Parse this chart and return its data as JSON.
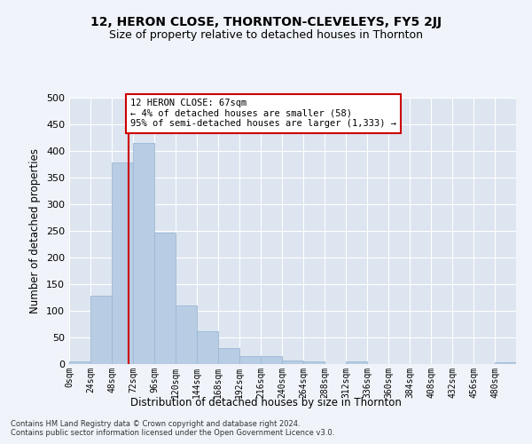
{
  "title": "12, HERON CLOSE, THORNTON-CLEVELEYS, FY5 2JJ",
  "subtitle": "Size of property relative to detached houses in Thornton",
  "xlabel": "Distribution of detached houses by size in Thornton",
  "ylabel": "Number of detached properties",
  "bar_color": "#b8cce4",
  "bar_edge_color": "#9ab8d4",
  "background_color": "#dde5f0",
  "fig_background_color": "#f0f4fa",
  "grid_color": "#ffffff",
  "bin_labels": [
    "0sqm",
    "24sqm",
    "48sqm",
    "72sqm",
    "96sqm",
    "120sqm",
    "144sqm",
    "168sqm",
    "192sqm",
    "216sqm",
    "240sqm",
    "264sqm",
    "288sqm",
    "312sqm",
    "336sqm",
    "360sqm",
    "384sqm",
    "408sqm",
    "432sqm",
    "456sqm",
    "480sqm"
  ],
  "bar_values": [
    5,
    128,
    378,
    415,
    246,
    110,
    62,
    30,
    15,
    15,
    7,
    5,
    0,
    5,
    0,
    0,
    0,
    0,
    0,
    0,
    3
  ],
  "ylim": [
    0,
    500
  ],
  "yticks": [
    0,
    50,
    100,
    150,
    200,
    250,
    300,
    350,
    400,
    450,
    500
  ],
  "property_sqm": 67,
  "annotation_title": "12 HERON CLOSE: 67sqm",
  "annotation_line1": "← 4% of detached houses are smaller (58)",
  "annotation_line2": "95% of semi-detached houses are larger (1,333) →",
  "annotation_box_color": "#ffffff",
  "annotation_box_edge": "#cc0000",
  "red_line_color": "#cc0000",
  "footnote1": "Contains HM Land Registry data © Crown copyright and database right 2024.",
  "footnote2": "Contains public sector information licensed under the Open Government Licence v3.0."
}
